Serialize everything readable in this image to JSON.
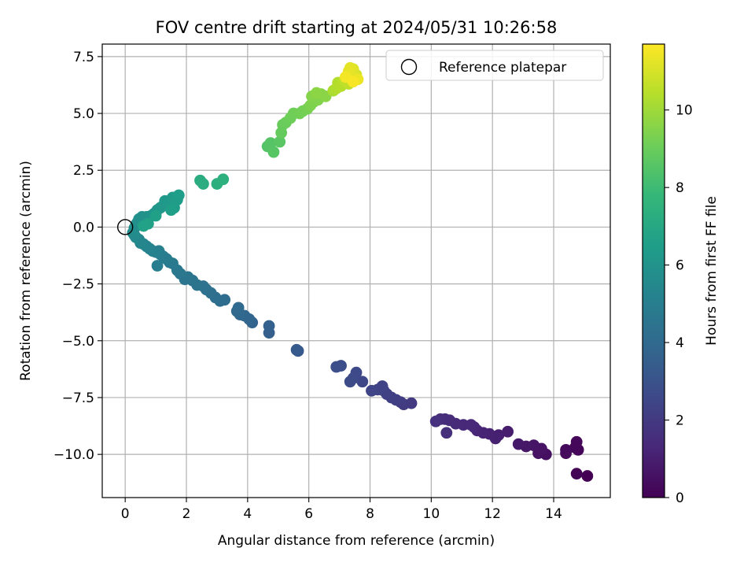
{
  "chart_data": {
    "type": "scatter",
    "title": "FOV centre drift starting at 2024/05/31 10:26:58",
    "xlabel": "Angular distance from reference (arcmin)",
    "ylabel": "Rotation from reference (arcmin)",
    "xlim": [
      -0.75,
      15.85
    ],
    "ylim": [
      -11.9,
      8.05
    ],
    "xticks": [
      0,
      2,
      4,
      6,
      8,
      10,
      12,
      14
    ],
    "xtick_labels": [
      "0",
      "2",
      "4",
      "6",
      "8",
      "10",
      "12",
      "14"
    ],
    "yticks": [
      7.5,
      5.0,
      2.5,
      0.0,
      -2.5,
      -5.0,
      -7.5,
      -10.0
    ],
    "ytick_labels": [
      "7.5",
      "5.0",
      "2.5",
      "0.0",
      "−2.5",
      "−5.0",
      "−7.5",
      "−10.0"
    ],
    "grid": true,
    "legend": {
      "position": "top-right",
      "entries": [
        {
          "label": "Reference platepar",
          "marker": "open-circle"
        }
      ]
    },
    "reference_point": {
      "x": 0.0,
      "y": 0.0
    },
    "colorbar": {
      "label": "Hours from first FF file",
      "range": [
        0,
        11.7
      ],
      "ticks": [
        0,
        2,
        4,
        6,
        8,
        10
      ],
      "tick_labels": [
        "0",
        "2",
        "4",
        "6",
        "8",
        "10"
      ],
      "colormap": "viridis",
      "colors": [
        "#440154",
        "#482878",
        "#3e4989",
        "#31688e",
        "#26828e",
        "#1f9e89",
        "#35b779",
        "#6ece58",
        "#b5de2b",
        "#fde725"
      ]
    },
    "series": [
      {
        "points": [
          [
            15.1,
            -10.95,
            0.0
          ],
          [
            14.75,
            -10.85,
            0.05
          ],
          [
            14.8,
            -9.8,
            0.1
          ],
          [
            14.7,
            -9.7,
            0.15
          ],
          [
            14.75,
            -9.45,
            0.2
          ],
          [
            14.4,
            -9.8,
            0.25
          ],
          [
            14.4,
            -9.95,
            0.3
          ],
          [
            13.75,
            -10.0,
            0.5
          ],
          [
            13.5,
            -9.95,
            0.55
          ],
          [
            13.6,
            -9.75,
            0.6
          ],
          [
            13.35,
            -9.6,
            0.65
          ],
          [
            13.1,
            -9.65,
            0.7
          ],
          [
            12.85,
            -9.55,
            0.75
          ],
          [
            12.5,
            -9.0,
            0.95
          ],
          [
            12.2,
            -9.15,
            1.0
          ],
          [
            12.1,
            -9.3,
            1.05
          ],
          [
            11.9,
            -9.1,
            1.1
          ],
          [
            11.7,
            -9.05,
            1.15
          ],
          [
            11.5,
            -8.95,
            1.2
          ],
          [
            11.4,
            -8.8,
            1.25
          ],
          [
            11.3,
            -8.7,
            1.3
          ],
          [
            11.05,
            -8.7,
            1.35
          ],
          [
            10.8,
            -8.65,
            1.4
          ],
          [
            10.6,
            -8.5,
            1.45
          ],
          [
            10.45,
            -8.45,
            1.5
          ],
          [
            10.3,
            -8.45,
            1.55
          ],
          [
            10.5,
            -9.05,
            1.6
          ],
          [
            10.15,
            -8.55,
            1.65
          ],
          [
            9.35,
            -7.75,
            2.0
          ],
          [
            9.1,
            -7.8,
            2.05
          ],
          [
            9.0,
            -7.7,
            2.1
          ],
          [
            8.85,
            -7.6,
            2.15
          ],
          [
            8.7,
            -7.5,
            2.2
          ],
          [
            8.55,
            -7.35,
            2.25
          ],
          [
            8.45,
            -7.2,
            2.3
          ],
          [
            8.4,
            -7.0,
            2.35
          ],
          [
            8.25,
            -7.15,
            2.4
          ],
          [
            8.05,
            -7.2,
            2.45
          ],
          [
            7.75,
            -6.8,
            2.55
          ],
          [
            7.55,
            -6.4,
            2.6
          ],
          [
            7.45,
            -6.65,
            2.65
          ],
          [
            7.35,
            -6.8,
            2.7
          ],
          [
            7.05,
            -6.1,
            2.8
          ],
          [
            6.9,
            -6.15,
            2.85
          ],
          [
            5.65,
            -5.45,
            3.25
          ],
          [
            5.6,
            -5.4,
            3.3
          ],
          [
            4.7,
            -4.65,
            3.55
          ],
          [
            4.7,
            -4.35,
            3.6
          ],
          [
            4.15,
            -4.2,
            3.75
          ],
          [
            4.05,
            -4.05,
            3.8
          ],
          [
            3.9,
            -3.9,
            3.85
          ],
          [
            3.75,
            -3.85,
            3.9
          ],
          [
            3.65,
            -3.7,
            3.95
          ],
          [
            3.7,
            -3.55,
            4.0
          ],
          [
            3.25,
            -3.2,
            4.1
          ],
          [
            3.1,
            -3.25,
            4.15
          ],
          [
            2.95,
            -3.1,
            4.2
          ],
          [
            2.8,
            -2.9,
            4.3
          ],
          [
            2.65,
            -2.75,
            4.35
          ],
          [
            2.55,
            -2.6,
            4.4
          ],
          [
            2.35,
            -2.55,
            4.45
          ],
          [
            2.2,
            -2.35,
            4.5
          ],
          [
            2.05,
            -2.2,
            4.55
          ],
          [
            1.95,
            -2.3,
            4.6
          ],
          [
            1.8,
            -2.05,
            4.65
          ],
          [
            1.7,
            -1.9,
            4.7
          ],
          [
            1.55,
            -1.6,
            4.75
          ],
          [
            1.45,
            -1.55,
            4.8
          ],
          [
            1.35,
            -1.4,
            4.85
          ],
          [
            1.25,
            -1.3,
            4.9
          ],
          [
            1.15,
            -1.2,
            4.95
          ],
          [
            1.05,
            -1.7,
            5.0
          ],
          [
            1.1,
            -1.05,
            5.05
          ],
          [
            1.0,
            -1.1,
            5.1
          ],
          [
            0.9,
            -1.05,
            5.15
          ],
          [
            0.8,
            -0.95,
            5.2
          ],
          [
            0.7,
            -0.85,
            5.3
          ],
          [
            0.6,
            -0.75,
            5.35
          ],
          [
            0.5,
            -0.7,
            5.4
          ],
          [
            0.45,
            -0.55,
            5.45
          ],
          [
            0.35,
            -0.45,
            5.5
          ],
          [
            0.3,
            -0.35,
            5.55
          ],
          [
            0.25,
            -0.25,
            5.6
          ],
          [
            0.3,
            -0.05,
            5.7
          ],
          [
            0.35,
            0.1,
            5.75
          ],
          [
            0.4,
            0.2,
            5.8
          ],
          [
            0.45,
            0.35,
            5.85
          ],
          [
            0.55,
            0.45,
            5.9
          ],
          [
            0.7,
            0.45,
            5.95
          ],
          [
            0.85,
            0.5,
            6.0
          ],
          [
            0.95,
            0.6,
            6.05
          ],
          [
            1.05,
            0.75,
            6.1
          ],
          [
            1.15,
            0.85,
            6.15
          ],
          [
            1.25,
            0.95,
            6.2
          ],
          [
            1.3,
            1.15,
            6.25
          ],
          [
            1.45,
            1.05,
            6.3
          ],
          [
            1.55,
            1.3,
            6.35
          ],
          [
            1.7,
            1.2,
            6.4
          ],
          [
            1.6,
            0.85,
            6.45
          ],
          [
            1.75,
            1.4,
            6.5
          ],
          [
            1.5,
            0.75,
            6.55
          ],
          [
            1.0,
            0.5,
            6.6
          ],
          [
            0.75,
            0.15,
            6.65
          ],
          [
            0.6,
            0.05,
            6.7
          ],
          [
            2.45,
            2.05,
            7.2
          ],
          [
            2.55,
            1.9,
            7.25
          ],
          [
            3.0,
            1.9,
            7.35
          ],
          [
            3.2,
            2.1,
            7.4
          ],
          [
            4.65,
            3.55,
            8.5
          ],
          [
            4.75,
            3.7,
            8.55
          ],
          [
            4.85,
            3.3,
            8.6
          ],
          [
            5.05,
            3.75,
            8.65
          ],
          [
            5.1,
            4.15,
            8.9
          ],
          [
            5.15,
            4.5,
            8.95
          ],
          [
            5.25,
            4.6,
            9.0
          ],
          [
            5.4,
            4.8,
            9.05
          ],
          [
            5.5,
            5.0,
            9.1
          ],
          [
            5.7,
            5.0,
            9.15
          ],
          [
            5.8,
            5.1,
            9.2
          ],
          [
            5.95,
            5.2,
            9.25
          ],
          [
            6.05,
            5.35,
            9.35
          ],
          [
            6.15,
            5.5,
            9.4
          ],
          [
            6.3,
            5.6,
            9.45
          ],
          [
            6.1,
            5.75,
            9.5
          ],
          [
            6.4,
            5.85,
            9.55
          ],
          [
            6.55,
            5.75,
            9.6
          ],
          [
            6.25,
            5.9,
            9.65
          ],
          [
            6.8,
            6.0,
            10.2
          ],
          [
            6.9,
            6.1,
            10.3
          ],
          [
            6.95,
            6.35,
            10.35
          ],
          [
            7.05,
            6.2,
            10.4
          ],
          [
            7.15,
            6.45,
            10.5
          ],
          [
            7.3,
            6.3,
            10.6
          ],
          [
            7.35,
            6.6,
            10.7
          ],
          [
            7.4,
            6.75,
            10.8
          ],
          [
            7.5,
            6.55,
            10.9
          ],
          [
            7.55,
            6.7,
            11.0
          ],
          [
            7.45,
            6.95,
            11.1
          ],
          [
            7.35,
            7.0,
            11.2
          ],
          [
            7.3,
            6.85,
            11.3
          ],
          [
            7.6,
            6.5,
            11.4
          ],
          [
            7.2,
            6.6,
            11.5
          ],
          [
            7.45,
            6.4,
            11.6
          ]
        ]
      }
    ]
  }
}
